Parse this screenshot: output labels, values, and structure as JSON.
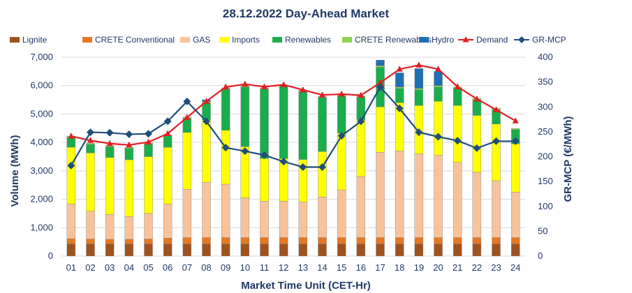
{
  "chart_data": {
    "type": "bar",
    "title": "28.12.2022  Day-Ahead Market",
    "xlabel": "Market Time Unit (CET-Hr)",
    "ylabel": "Volume (MWh)",
    "y2label": "GR-MCP (€/MWh)",
    "ylim": [
      0,
      7000
    ],
    "y2lim": [
      0,
      400
    ],
    "yticks": [
      "0",
      "1,000",
      "2,000",
      "3,000",
      "4,000",
      "5,000",
      "6,000",
      "7,000"
    ],
    "y2ticks": [
      "0",
      "50",
      "100",
      "150",
      "200",
      "250",
      "300",
      "350",
      "400"
    ],
    "categories": [
      "01",
      "02",
      "03",
      "04",
      "05",
      "06",
      "07",
      "08",
      "09",
      "10",
      "11",
      "12",
      "13",
      "14",
      "15",
      "16",
      "17",
      "18",
      "19",
      "20",
      "21",
      "22",
      "23",
      "24"
    ],
    "stacked_series": [
      {
        "name": "Lignite",
        "color": "#a0521e",
        "values": [
          430,
          430,
          430,
          430,
          430,
          430,
          430,
          430,
          430,
          430,
          430,
          430,
          430,
          430,
          430,
          430,
          430,
          430,
          430,
          430,
          430,
          430,
          430,
          430
        ]
      },
      {
        "name": "CRETE Conventional",
        "color": "#e87722",
        "values": [
          180,
          170,
          160,
          160,
          170,
          200,
          220,
          220,
          220,
          220,
          220,
          220,
          220,
          220,
          220,
          220,
          220,
          220,
          220,
          220,
          220,
          220,
          220,
          220
        ]
      },
      {
        "name": "GAS",
        "color": "#f8c39b",
        "values": [
          1220,
          980,
          880,
          800,
          900,
          1200,
          1700,
          1950,
          1880,
          1400,
          1280,
          1280,
          1250,
          1430,
          1680,
          2150,
          3000,
          3050,
          2950,
          2900,
          2650,
          2300,
          2000,
          1600
        ]
      },
      {
        "name": "Imports",
        "color": "#ffff00",
        "values": [
          2000,
          2050,
          2000,
          2000,
          2000,
          2000,
          2000,
          2200,
          1900,
          1800,
          1500,
          1500,
          1500,
          1600,
          2000,
          2000,
          1600,
          1700,
          1700,
          1900,
          2000,
          2000,
          2000,
          1700
        ]
      },
      {
        "name": "Renewables",
        "color": "#1aad4b",
        "values": [
          350,
          300,
          380,
          400,
          450,
          400,
          500,
          600,
          1450,
          2100,
          2450,
          2550,
          2400,
          1900,
          1300,
          800,
          1400,
          500,
          550,
          500,
          600,
          550,
          500,
          500
        ]
      },
      {
        "name": "CRETE Renewables",
        "color": "#92d050",
        "values": [
          40,
          40,
          40,
          40,
          40,
          40,
          40,
          40,
          40,
          40,
          40,
          40,
          40,
          40,
          40,
          40,
          50,
          50,
          50,
          50,
          50,
          50,
          50,
          40
        ]
      },
      {
        "name": "Hydro",
        "color": "#1f6fb5",
        "values": [
          0,
          0,
          0,
          0,
          0,
          0,
          0,
          60,
          0,
          0,
          0,
          0,
          0,
          0,
          0,
          0,
          200,
          500,
          700,
          500,
          0,
          0,
          0,
          0
        ]
      }
    ],
    "line_series": [
      {
        "name": "Demand",
        "axis": "left",
        "color": "#e31e24",
        "marker": "triangle",
        "values": [
          4220,
          4070,
          3960,
          3910,
          4010,
          4310,
          4880,
          5450,
          5950,
          6050,
          5960,
          6030,
          5850,
          5670,
          5700,
          5660,
          6100,
          6580,
          6720,
          6580,
          5960,
          5530,
          5150,
          4760
        ]
      },
      {
        "name": "GR-MCP",
        "axis": "right",
        "color": "#1f4e79",
        "marker": "diamond",
        "values": [
          182,
          249,
          248,
          245,
          246,
          271,
          311,
          271,
          218,
          211,
          203,
          190,
          179,
          179,
          242,
          271,
          340,
          297,
          249,
          240,
          232,
          217,
          231,
          231
        ]
      }
    ],
    "legend": [
      "Lignite",
      "CRETE Conventional",
      "GAS",
      "Imports",
      "Renewables",
      "CRETE Renewables",
      "Hydro",
      "Demand",
      "GR-MCP"
    ],
    "legend_position": "top",
    "grid": true
  }
}
